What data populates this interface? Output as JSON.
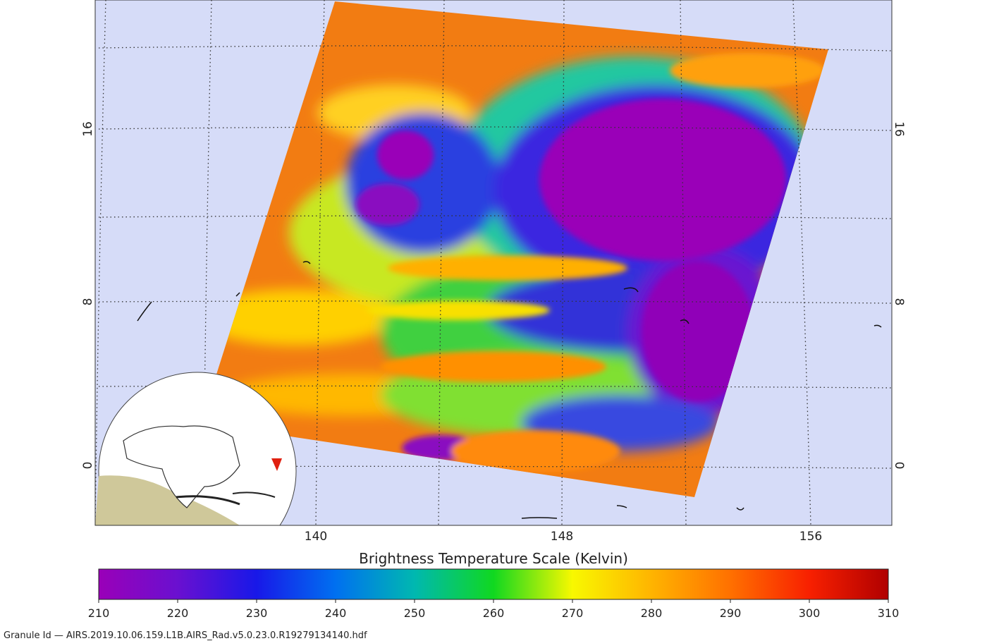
{
  "map": {
    "lat_labels": [
      "16",
      "8",
      "0"
    ],
    "lon_labels": [
      "140",
      "148",
      "156"
    ]
  },
  "colorbar": {
    "title": "Brightness Temperature Scale (Kelvin)",
    "ticks": [
      210,
      220,
      230,
      240,
      250,
      260,
      270,
      280,
      290,
      300,
      310
    ]
  },
  "footer": {
    "granule": "Granule Id — AIRS.2019.10.06.159.L1B.AIRS_Rad.v5.0.23.0.R19279134140.hdf"
  }
}
